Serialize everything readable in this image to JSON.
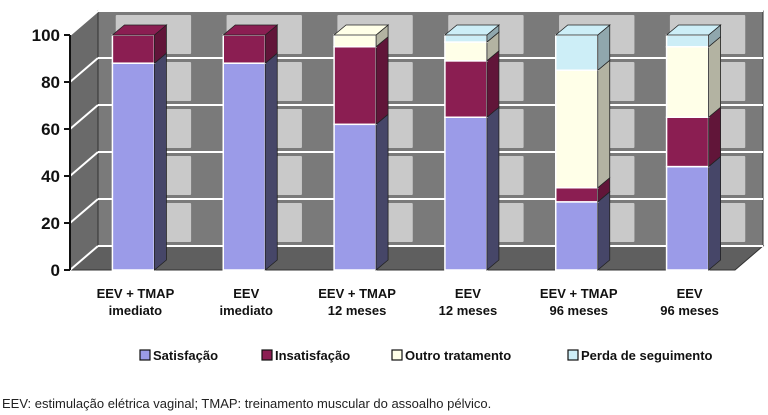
{
  "chart_data": {
    "type": "bar",
    "stacked": true,
    "three_d": true,
    "categories": [
      [
        "EEV + TMAP",
        "imediato"
      ],
      [
        "EEV",
        "imediato"
      ],
      [
        "EEV + TMAP",
        "12 meses"
      ],
      [
        "EEV",
        "12 meses"
      ],
      [
        "EEV + TMAP",
        "96 meses"
      ],
      [
        "EEV",
        "96 meses"
      ]
    ],
    "series": [
      {
        "name": "Satisfação",
        "color": "#9b9be8",
        "values": [
          88,
          88,
          62,
          65,
          29,
          44
        ]
      },
      {
        "name": "Insatisfação",
        "color": "#8b1e52",
        "values": [
          12,
          12,
          33,
          24,
          6,
          21
        ]
      },
      {
        "name": "Outro tratamento",
        "color": "#ffffe8",
        "values": [
          0,
          0,
          5,
          8,
          50,
          30
        ]
      },
      {
        "name": "Perda de seguimento",
        "color": "#cdeef7",
        "values": [
          0,
          0,
          0,
          3,
          15,
          5
        ]
      }
    ],
    "ylim": [
      0,
      100
    ],
    "yticks": [
      0,
      20,
      40,
      60,
      80,
      100
    ],
    "grid": true,
    "legend_position": "bottom"
  },
  "caption": "EEV: estimulação elétrica vaginal; TMAP: treinamento muscular do assoalho pélvico."
}
